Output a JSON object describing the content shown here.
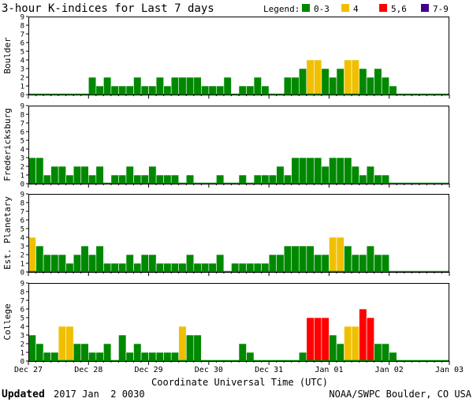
{
  "chart_data": {
    "type": "bar",
    "title": "3-hour K-indices for Last 7 days",
    "legend": {
      "label": "Legend:",
      "placement": "top-right",
      "entries": [
        {
          "label": "0-3",
          "color": "#008800"
        },
        {
          "label": "4",
          "color": "#f0c000"
        },
        {
          "label": "5,6",
          "color": "#ff0000"
        },
        {
          "label": "7-9",
          "color": "#440088"
        }
      ]
    },
    "xlabel": "Coordinate Universal Time (UTC)",
    "x_tick_labels": [
      "Dec 27",
      "Dec 28",
      "Dec 29",
      "Dec 30",
      "Dec 31",
      "Jan 01",
      "Jan 02",
      "Jan 03"
    ],
    "y_tick_labels": [
      "0",
      "1",
      "2",
      "3",
      "4",
      "5",
      "6",
      "7",
      "8",
      "9"
    ],
    "ylim": [
      0,
      9
    ],
    "grid": false,
    "bars_per_day": 8,
    "series": [
      {
        "name": "Boulder",
        "values": [
          0,
          0,
          0,
          0,
          0,
          0,
          0,
          0,
          2,
          1,
          2,
          1,
          1,
          1,
          2,
          1,
          1,
          2,
          1,
          2,
          2,
          2,
          2,
          1,
          1,
          1,
          2,
          0,
          1,
          1,
          2,
          1,
          0,
          0,
          2,
          2,
          3,
          4,
          4,
          3,
          2,
          3,
          4,
          4,
          3,
          2,
          3,
          2,
          1,
          0,
          0,
          0,
          0,
          0,
          0,
          0
        ]
      },
      {
        "name": "Fredericksburg",
        "values": [
          3,
          3,
          1,
          2,
          2,
          1,
          2,
          2,
          1,
          2,
          0,
          1,
          1,
          2,
          1,
          1,
          2,
          1,
          1,
          1,
          0,
          1,
          0,
          0,
          0,
          1,
          0,
          0,
          1,
          0,
          1,
          1,
          1,
          2,
          1,
          3,
          3,
          3,
          3,
          2,
          3,
          3,
          3,
          2,
          1,
          2,
          1,
          1,
          0,
          0,
          0,
          0,
          0,
          0,
          0,
          0
        ]
      },
      {
        "name": "Est. Planetary",
        "values": [
          4,
          3,
          2,
          2,
          2,
          1,
          2,
          3,
          2,
          3,
          1,
          1,
          1,
          2,
          1,
          2,
          2,
          1,
          1,
          1,
          1,
          2,
          1,
          1,
          1,
          2,
          0,
          1,
          1,
          1,
          1,
          1,
          2,
          2,
          3,
          3,
          3,
          3,
          2,
          2,
          4,
          4,
          3,
          2,
          2,
          3,
          2,
          2,
          0,
          0,
          0,
          0,
          0,
          0,
          0,
          0
        ]
      },
      {
        "name": "College",
        "values": [
          3,
          2,
          1,
          1,
          4,
          4,
          2,
          2,
          1,
          1,
          2,
          0,
          3,
          1,
          2,
          1,
          1,
          1,
          1,
          1,
          4,
          3,
          3,
          0,
          0,
          0,
          0,
          0,
          2,
          1,
          0,
          0,
          0,
          0,
          0,
          0,
          1,
          5,
          5,
          5,
          3,
          2,
          4,
          4,
          6,
          5,
          2,
          2,
          1,
          0,
          0,
          0,
          0,
          0,
          0,
          0
        ]
      }
    ]
  },
  "footer": {
    "updated_label": "Updated",
    "updated_value": "2017 Jan  2 0030",
    "credit": "NOAA/SWPC Boulder, CO USA"
  }
}
